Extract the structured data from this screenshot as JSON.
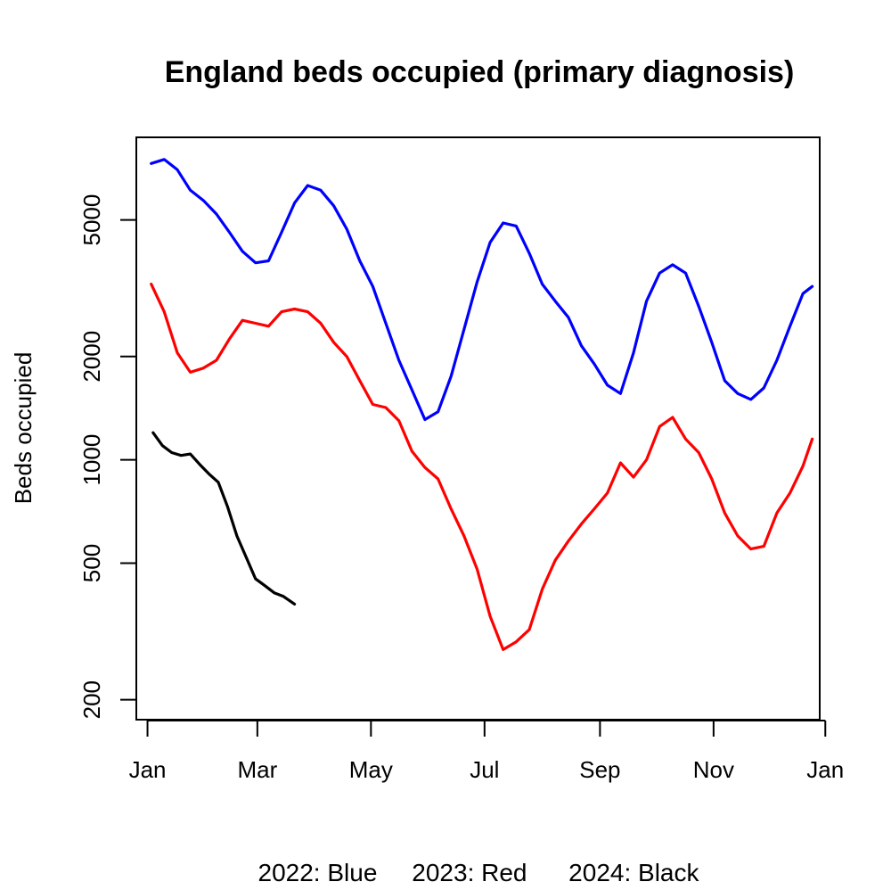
{
  "chart_data": {
    "type": "line",
    "title": "England beds occupied (primary diagnosis)",
    "xlabel": "",
    "ylabel": "Beds occupied",
    "y_scale": "log",
    "ylim": [
      175,
      8700
    ],
    "xlim": [
      "2000-12-26",
      "2001-12-28"
    ],
    "x_ticks": [
      {
        "date": "2001-01-01",
        "label": "Jan"
      },
      {
        "date": "2001-03-01",
        "label": "Mar"
      },
      {
        "date": "2001-05-01",
        "label": "May"
      },
      {
        "date": "2001-07-01",
        "label": "Jul"
      },
      {
        "date": "2001-09-01",
        "label": "Sep"
      },
      {
        "date": "2001-11-01",
        "label": "Nov"
      },
      {
        "date": "2001-12-31",
        "label": "Jan"
      }
    ],
    "y_ticks": [
      200,
      500,
      1000,
      2000,
      5000
    ],
    "grid": false,
    "footer": "2022: Blue     2023: Red      2024: Black",
    "series": [
      {
        "color": "#0000ff",
        "points": [
          [
            "2001-01-03",
            7300
          ],
          [
            "2001-01-10",
            7500
          ],
          [
            "2001-01-17",
            7000
          ],
          [
            "2001-01-24",
            6100
          ],
          [
            "2001-01-31",
            5700
          ],
          [
            "2001-02-07",
            5200
          ],
          [
            "2001-02-14",
            4600
          ],
          [
            "2001-02-21",
            4050
          ],
          [
            "2001-02-28",
            3750
          ],
          [
            "2001-03-07",
            3800
          ],
          [
            "2001-03-14",
            4600
          ],
          [
            "2001-03-21",
            5600
          ],
          [
            "2001-03-28",
            6300
          ],
          [
            "2001-04-04",
            6100
          ],
          [
            "2001-04-11",
            5500
          ],
          [
            "2001-04-18",
            4700
          ],
          [
            "2001-04-25",
            3800
          ],
          [
            "2001-05-02",
            3200
          ],
          [
            "2001-05-09",
            2500
          ],
          [
            "2001-05-16",
            1950
          ],
          [
            "2001-05-23",
            1600
          ],
          [
            "2001-05-30",
            1310
          ],
          [
            "2001-06-06",
            1380
          ],
          [
            "2001-06-13",
            1750
          ],
          [
            "2001-06-20",
            2400
          ],
          [
            "2001-06-27",
            3300
          ],
          [
            "2001-07-04",
            4300
          ],
          [
            "2001-07-11",
            4900
          ],
          [
            "2001-07-18",
            4800
          ],
          [
            "2001-07-25",
            4000
          ],
          [
            "2001-08-01",
            3250
          ],
          [
            "2001-08-08",
            2900
          ],
          [
            "2001-08-15",
            2600
          ],
          [
            "2001-08-22",
            2150
          ],
          [
            "2001-08-29",
            1900
          ],
          [
            "2001-09-05",
            1650
          ],
          [
            "2001-09-12",
            1560
          ],
          [
            "2001-09-19",
            2050
          ],
          [
            "2001-09-26",
            2900
          ],
          [
            "2001-10-03",
            3500
          ],
          [
            "2001-10-10",
            3700
          ],
          [
            "2001-10-17",
            3500
          ],
          [
            "2001-10-24",
            2800
          ],
          [
            "2001-10-31",
            2200
          ],
          [
            "2001-11-07",
            1700
          ],
          [
            "2001-11-14",
            1560
          ],
          [
            "2001-11-21",
            1500
          ],
          [
            "2001-11-28",
            1620
          ],
          [
            "2001-12-05",
            1950
          ],
          [
            "2001-12-12",
            2450
          ],
          [
            "2001-12-19",
            3050
          ],
          [
            "2001-12-24",
            3200
          ]
        ]
      },
      {
        "color": "#ff0000",
        "points": [
          [
            "2001-01-03",
            3250
          ],
          [
            "2001-01-10",
            2700
          ],
          [
            "2001-01-17",
            2050
          ],
          [
            "2001-01-24",
            1800
          ],
          [
            "2001-01-31",
            1850
          ],
          [
            "2001-02-07",
            1950
          ],
          [
            "2001-02-14",
            2250
          ],
          [
            "2001-02-21",
            2550
          ],
          [
            "2001-02-28",
            2500
          ],
          [
            "2001-03-07",
            2450
          ],
          [
            "2001-03-14",
            2700
          ],
          [
            "2001-03-21",
            2750
          ],
          [
            "2001-03-28",
            2700
          ],
          [
            "2001-04-04",
            2500
          ],
          [
            "2001-04-11",
            2200
          ],
          [
            "2001-04-18",
            2000
          ],
          [
            "2001-04-25",
            1700
          ],
          [
            "2001-05-02",
            1450
          ],
          [
            "2001-05-09",
            1420
          ],
          [
            "2001-05-16",
            1300
          ],
          [
            "2001-05-23",
            1060
          ],
          [
            "2001-05-30",
            950
          ],
          [
            "2001-06-06",
            880
          ],
          [
            "2001-06-13",
            720
          ],
          [
            "2001-06-20",
            600
          ],
          [
            "2001-06-27",
            480
          ],
          [
            "2001-07-04",
            350
          ],
          [
            "2001-07-11",
            280
          ],
          [
            "2001-07-18",
            295
          ],
          [
            "2001-07-25",
            320
          ],
          [
            "2001-08-01",
            420
          ],
          [
            "2001-08-08",
            510
          ],
          [
            "2001-08-15",
            580
          ],
          [
            "2001-08-22",
            650
          ],
          [
            "2001-08-29",
            720
          ],
          [
            "2001-09-05",
            800
          ],
          [
            "2001-09-12",
            980
          ],
          [
            "2001-09-19",
            890
          ],
          [
            "2001-09-26",
            1000
          ],
          [
            "2001-10-03",
            1250
          ],
          [
            "2001-10-10",
            1330
          ],
          [
            "2001-10-17",
            1150
          ],
          [
            "2001-10-24",
            1050
          ],
          [
            "2001-10-31",
            880
          ],
          [
            "2001-11-07",
            700
          ],
          [
            "2001-11-14",
            600
          ],
          [
            "2001-11-21",
            550
          ],
          [
            "2001-11-28",
            560
          ],
          [
            "2001-12-05",
            700
          ],
          [
            "2001-12-12",
            800
          ],
          [
            "2001-12-19",
            960
          ],
          [
            "2001-12-24",
            1150
          ]
        ]
      },
      {
        "color": "#000000",
        "points": [
          [
            "2001-01-04",
            1200
          ],
          [
            "2001-01-09",
            1100
          ],
          [
            "2001-01-14",
            1050
          ],
          [
            "2001-01-19",
            1030
          ],
          [
            "2001-01-24",
            1040
          ],
          [
            "2001-01-29",
            970
          ],
          [
            "2001-02-03",
            910
          ],
          [
            "2001-02-08",
            860
          ],
          [
            "2001-02-13",
            730
          ],
          [
            "2001-02-18",
            600
          ],
          [
            "2001-02-23",
            520
          ],
          [
            "2001-02-28",
            450
          ],
          [
            "2001-03-05",
            430
          ],
          [
            "2001-03-10",
            410
          ],
          [
            "2001-03-15",
            400
          ],
          [
            "2001-03-21",
            380
          ]
        ]
      }
    ]
  }
}
